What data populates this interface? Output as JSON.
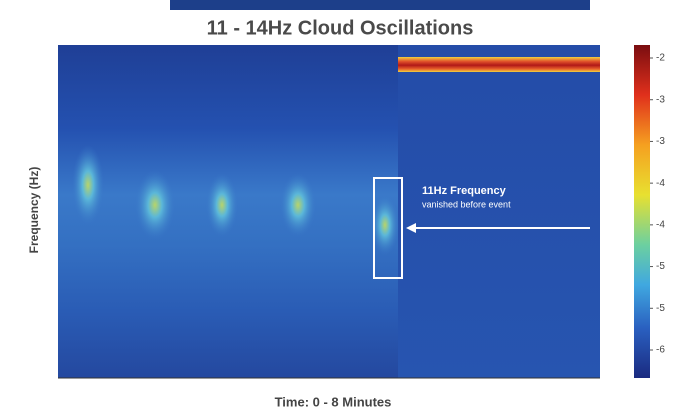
{
  "chart_data": {
    "type": "spectrogram",
    "title": "11 - 14Hz Cloud Oscillations",
    "x_label": "Time: 0 - 8 Minutes",
    "y_label": "Frequency (Hz)",
    "annotation": {
      "title": "11Hz Frequency",
      "subtitle": "vanished before event"
    },
    "colorbar_labels": [
      "-2",
      "-3",
      "-3",
      "-4",
      "-4",
      "-5",
      "-5",
      "-6"
    ]
  }
}
